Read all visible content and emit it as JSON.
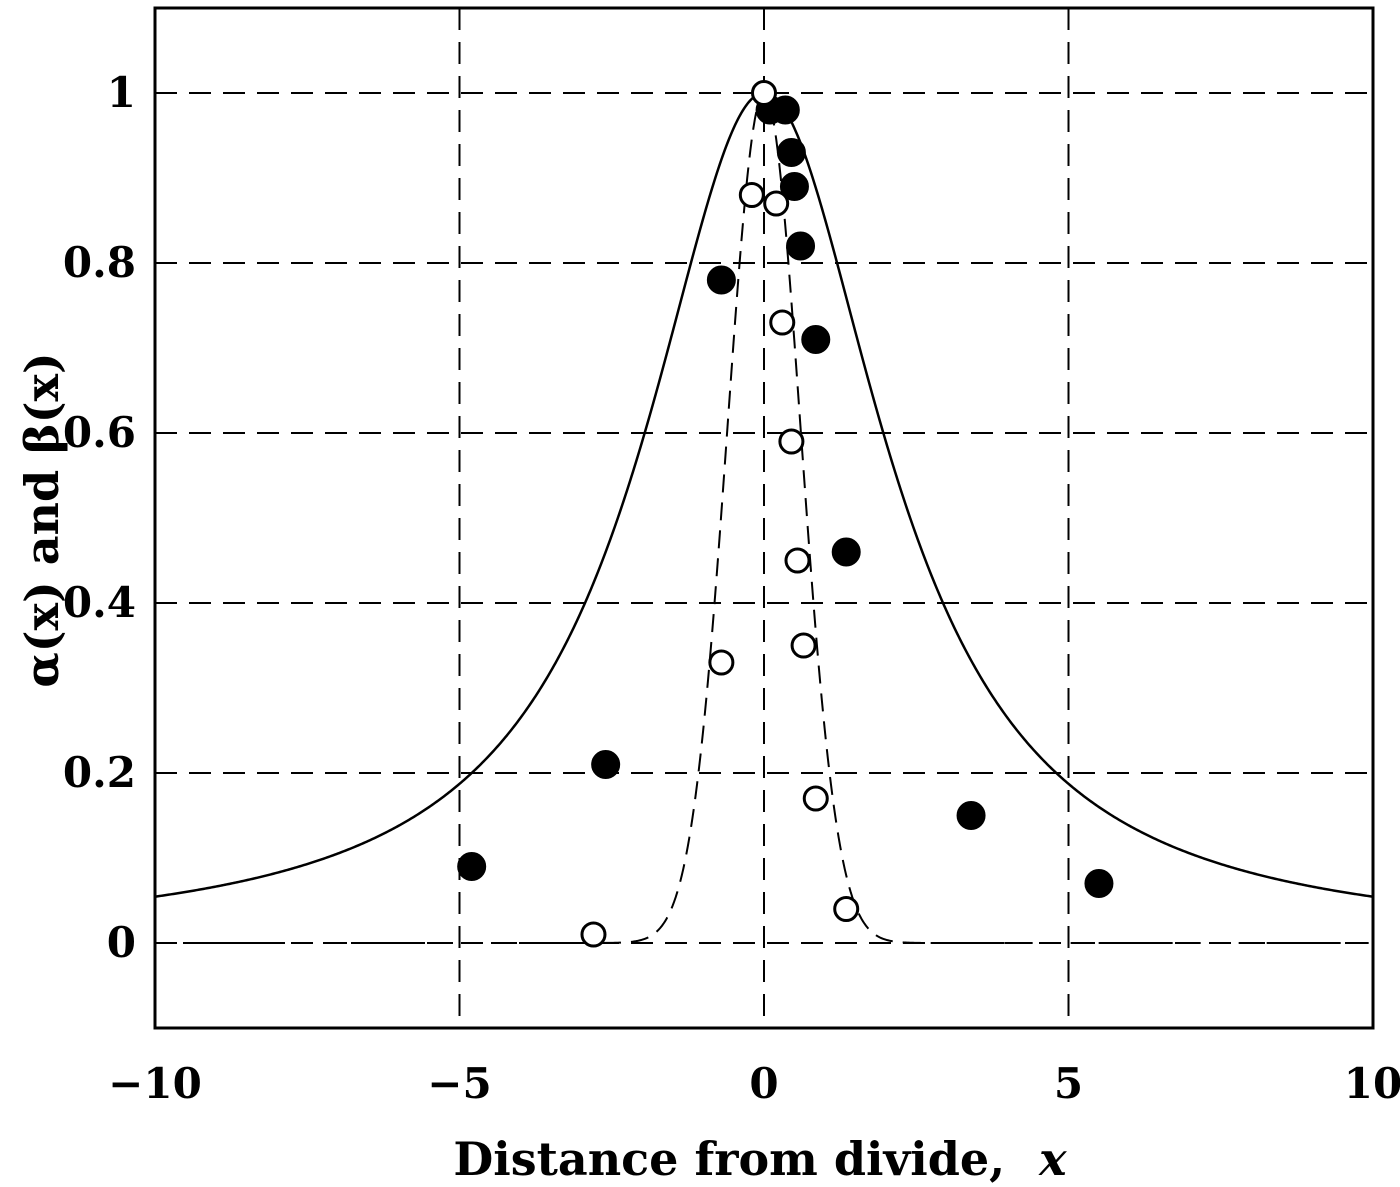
{
  "chart_data": {
    "type": "scatter",
    "xlabel": "Distance from divide,",
    "xlabel_var": "x",
    "ylabel": "α(x) and β(x)",
    "xlim": [
      -10,
      10
    ],
    "ylim": [
      -0.1,
      1.1
    ],
    "x_ticks": [
      -10,
      -5,
      0,
      5,
      10
    ],
    "x_tick_labels": [
      "−10",
      "−5",
      "0",
      "5",
      "10"
    ],
    "y_ticks": [
      0,
      0.2,
      0.4,
      0.6,
      0.8,
      1
    ],
    "y_tick_labels": [
      "0",
      "0.2",
      "0.4",
      "0.6",
      "0.8",
      "1"
    ],
    "grid": true,
    "grid_style": "dashed",
    "series": [
      {
        "marker": "filled-circle",
        "points": [
          [
            -4.8,
            0.09
          ],
          [
            -2.6,
            0.21
          ],
          [
            -0.7,
            0.78
          ],
          [
            0.1,
            0.98
          ],
          [
            0.35,
            0.98
          ],
          [
            0.45,
            0.93
          ],
          [
            0.5,
            0.89
          ],
          [
            0.6,
            0.82
          ],
          [
            0.85,
            0.71
          ],
          [
            1.35,
            0.46
          ],
          [
            3.4,
            0.15
          ],
          [
            5.5,
            0.07
          ]
        ]
      },
      {
        "marker": "open-circle",
        "points": [
          [
            0.0,
            1.0
          ],
          [
            -0.2,
            0.88
          ],
          [
            0.2,
            0.87
          ],
          [
            0.3,
            0.73
          ],
          [
            0.45,
            0.59
          ],
          [
            0.55,
            0.45
          ],
          [
            0.65,
            0.35
          ],
          [
            0.85,
            0.17
          ],
          [
            1.35,
            0.04
          ],
          [
            -0.7,
            0.33
          ],
          [
            -2.8,
            0.01
          ]
        ]
      }
    ],
    "curves": [
      {
        "style": "solid",
        "function": "lorentzian",
        "gamma": 2.4
      },
      {
        "style": "dashed",
        "function": "gaussian",
        "sigma": 0.6
      }
    ],
    "colors": {
      "ink": "#000000",
      "background": "#ffffff"
    }
  }
}
